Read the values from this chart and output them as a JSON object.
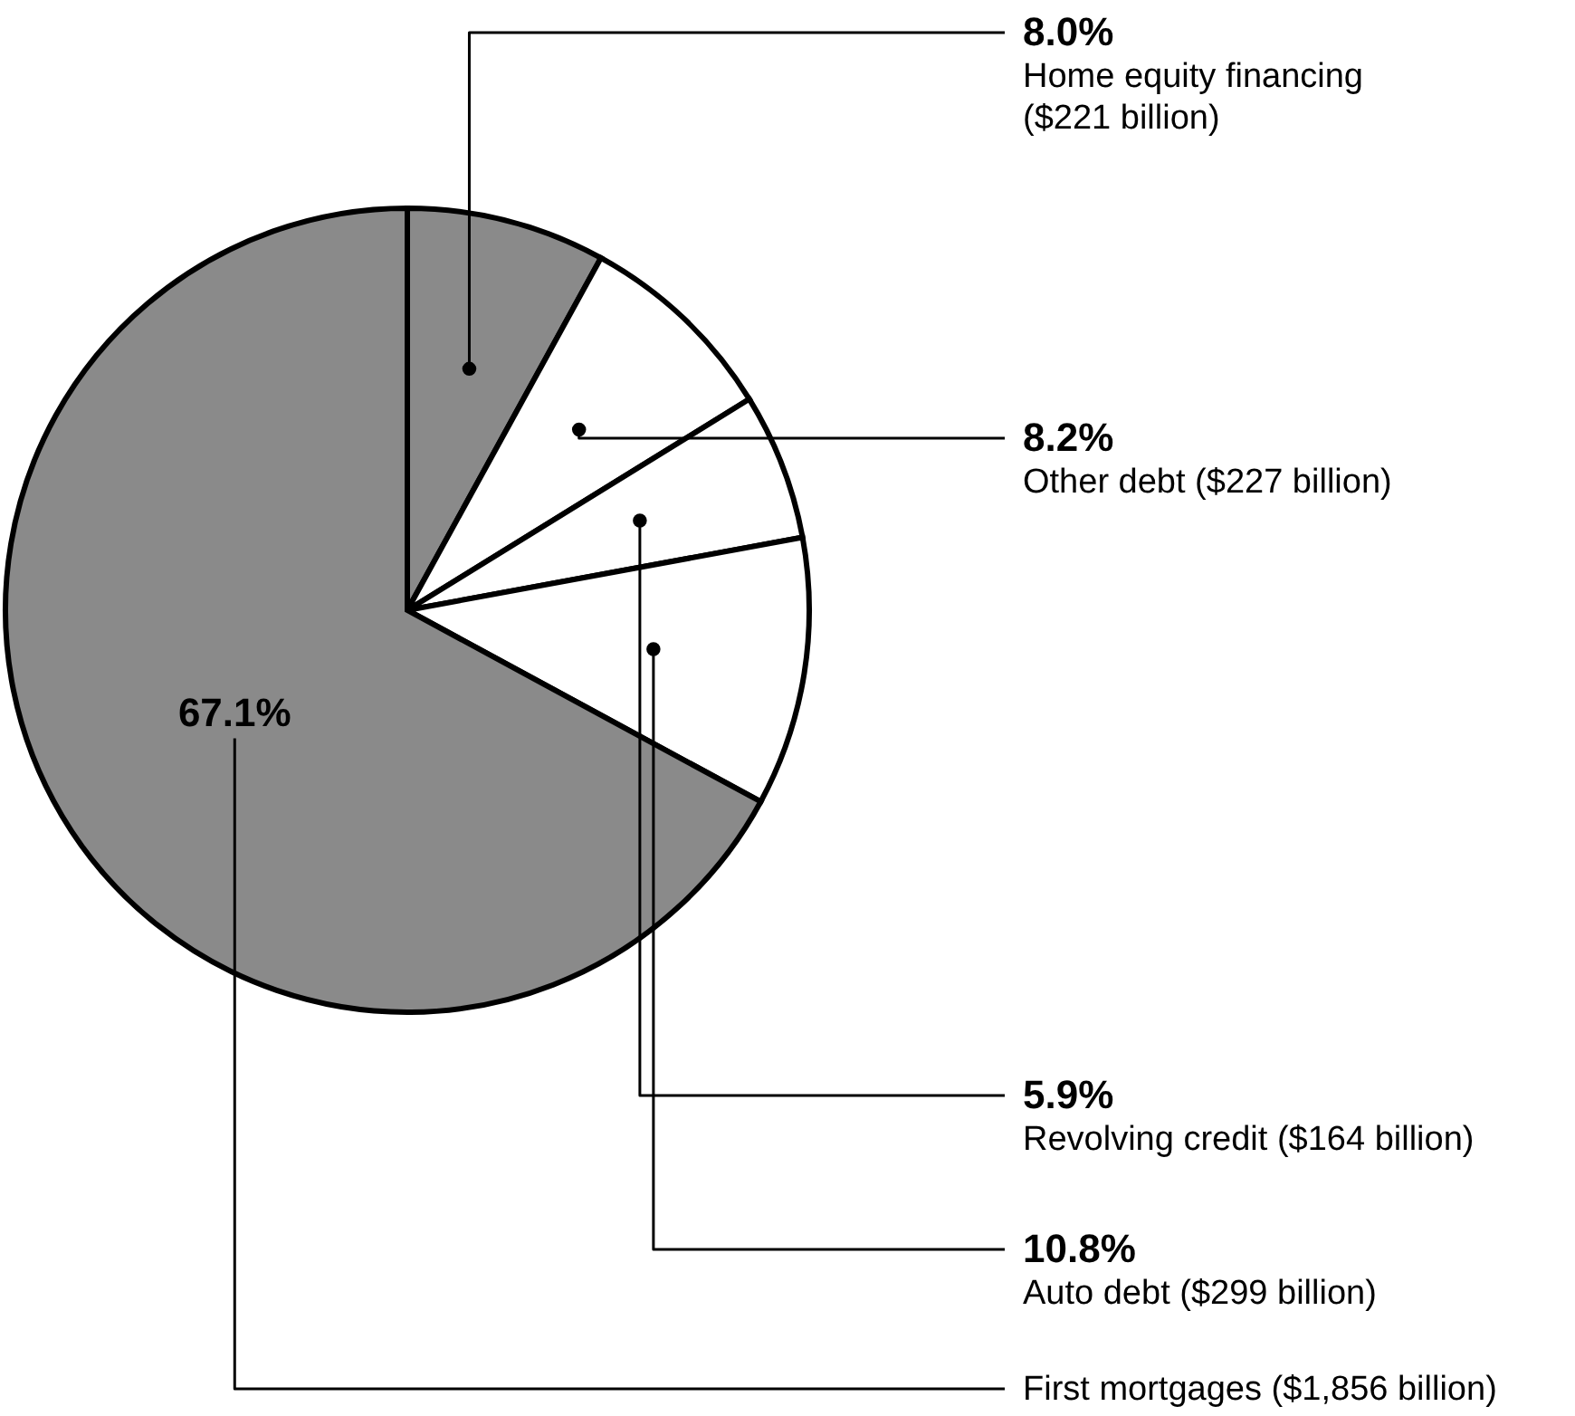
{
  "chart_data": {
    "type": "pie",
    "categories": [
      "Home equity financing\n($221 billion)",
      "Other debt ($227 billion)",
      "Revolving credit ($164 billion)",
      "Auto debt ($299 billion)",
      "First mortgages ($1,856 billion)"
    ],
    "values": [
      8.0,
      8.2,
      5.9,
      10.8,
      67.1
    ],
    "value_labels": [
      "8.0%",
      "8.2%",
      "5.9%",
      "10.8%",
      "67.1%"
    ],
    "colors": [
      "#8a8a8a",
      "#ffffff",
      "#ffffff",
      "#ffffff",
      "#8a8a8a"
    ]
  }
}
